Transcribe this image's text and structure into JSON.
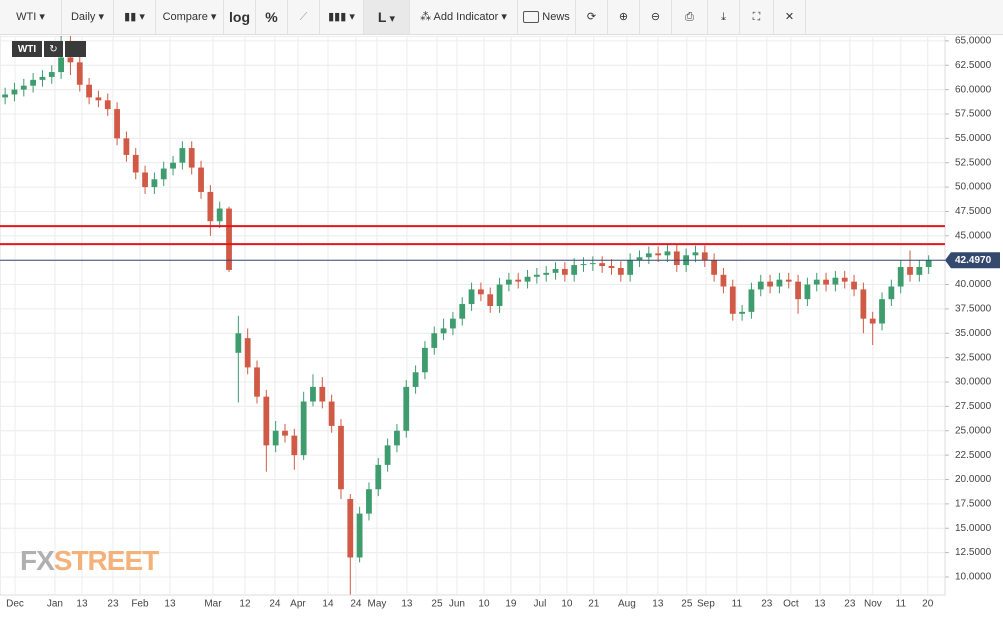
{
  "toolbar": {
    "symbol": "WTI",
    "interval": "Daily",
    "compare": "Compare",
    "log": "log",
    "percent": "%",
    "chart_style": "L",
    "indicator": "Add Indicator",
    "news": "News"
  },
  "watermark": [
    "FX",
    "STREET"
  ],
  "chart_data": {
    "type": "candlestick",
    "up_color": "#3e9c6e",
    "down_color": "#d05a45",
    "grid": true,
    "open": [
      59.2,
      59.5,
      60.0,
      60.4,
      61.0,
      61.3,
      61.8,
      63.3,
      62.8,
      60.5,
      59.2,
      58.9,
      58.0,
      55.0,
      53.3,
      51.5,
      50.0,
      50.8,
      51.9,
      52.5,
      54.0,
      52.0,
      49.5,
      46.5,
      47.8,
      33.0,
      34.5,
      31.5,
      28.5,
      23.5,
      25.0,
      24.5,
      22.5,
      28.0,
      29.5,
      28.0,
      25.5,
      18.0,
      12.0,
      16.5,
      19.0,
      21.5,
      23.5,
      25.0,
      29.5,
      31.0,
      33.5,
      35.0,
      35.5,
      36.5,
      38.0,
      39.5,
      39.0,
      37.8,
      40.0,
      40.5,
      40.3,
      40.8,
      41.0,
      41.2,
      41.6,
      41.0,
      42.0,
      42.1,
      42.2,
      41.9,
      41.7,
      41.0,
      42.5,
      42.8,
      43.2,
      43.0,
      43.4,
      42.0,
      43.0,
      43.3,
      42.5,
      41.0,
      39.8,
      37.0,
      37.2,
      39.5,
      40.3,
      39.8,
      40.5,
      40.3,
      38.5,
      40.0,
      40.5,
      40.0,
      40.7,
      40.3,
      39.5,
      36.5,
      36.0,
      38.5,
      39.8,
      41.8,
      41.0,
      41.8
    ],
    "high": [
      60.2,
      60.7,
      61.1,
      61.7,
      62.0,
      62.5,
      65.6,
      65.5,
      63.5,
      61.2,
      59.9,
      59.6,
      58.7,
      55.7,
      54.0,
      52.2,
      51.5,
      52.6,
      53.2,
      54.7,
      54.7,
      52.7,
      50.2,
      48.5,
      48.0,
      36.8,
      35.5,
      32.2,
      29.2,
      26.0,
      25.7,
      25.2,
      29.0,
      30.8,
      30.5,
      28.7,
      26.2,
      18.5,
      17.2,
      19.7,
      22.2,
      24.2,
      25.7,
      30.2,
      31.7,
      34.2,
      35.7,
      36.5,
      37.2,
      38.7,
      40.2,
      40.2,
      39.7,
      40.7,
      41.2,
      41.2,
      41.5,
      41.7,
      41.9,
      42.3,
      42.3,
      42.7,
      42.8,
      42.9,
      42.9,
      42.6,
      42.4,
      43.2,
      43.5,
      43.9,
      43.9,
      44.1,
      44.1,
      43.7,
      44.0,
      44.0,
      43.2,
      41.7,
      40.5,
      37.9,
      40.2,
      41.0,
      41.0,
      41.2,
      41.2,
      41.0,
      40.7,
      41.2,
      41.2,
      41.4,
      41.4,
      41.0,
      40.2,
      37.2,
      39.2,
      40.5,
      42.5,
      43.5,
      42.5,
      43.0
    ],
    "low": [
      58.5,
      58.8,
      59.3,
      59.7,
      60.3,
      60.6,
      61.1,
      61.5,
      59.8,
      58.5,
      58.2,
      57.3,
      54.3,
      52.6,
      50.8,
      49.3,
      49.3,
      50.1,
      51.2,
      51.8,
      51.3,
      48.8,
      45.0,
      45.8,
      41.3,
      27.9,
      30.8,
      27.8,
      20.8,
      22.8,
      23.8,
      21.0,
      22.0,
      27.5,
      27.3,
      24.8,
      18.0,
      8.2,
      11.5,
      15.8,
      18.3,
      20.8,
      22.8,
      24.3,
      28.8,
      30.3,
      32.8,
      34.3,
      34.8,
      35.8,
      37.3,
      38.3,
      37.1,
      37.1,
      39.3,
      39.6,
      39.6,
      40.1,
      40.3,
      40.5,
      40.3,
      40.3,
      41.3,
      41.4,
      41.2,
      41.0,
      40.3,
      40.3,
      41.8,
      42.1,
      42.3,
      42.3,
      41.3,
      41.3,
      42.3,
      41.8,
      40.3,
      39.1,
      36.3,
      36.3,
      36.5,
      38.8,
      39.1,
      39.1,
      39.6,
      37.0,
      37.8,
      39.3,
      39.3,
      39.3,
      39.6,
      38.8,
      35.0,
      33.8,
      35.3,
      37.8,
      39.1,
      40.3,
      40.3,
      41.1
    ],
    "close": [
      59.5,
      60.0,
      60.4,
      61.0,
      61.3,
      61.8,
      63.3,
      62.8,
      60.5,
      59.2,
      58.9,
      58.0,
      55.0,
      53.3,
      51.5,
      50.0,
      50.8,
      51.9,
      52.5,
      54.0,
      52.0,
      49.5,
      46.5,
      47.8,
      41.5,
      35.0,
      31.5,
      28.5,
      23.5,
      25.0,
      24.5,
      22.5,
      28.0,
      29.5,
      28.0,
      25.5,
      19.0,
      12.0,
      16.5,
      19.0,
      21.5,
      23.5,
      25.0,
      29.5,
      31.0,
      33.5,
      35.0,
      35.5,
      36.5,
      38.0,
      39.5,
      39.0,
      37.8,
      40.0,
      40.5,
      40.3,
      40.8,
      41.0,
      41.2,
      41.6,
      41.0,
      42.0,
      42.1,
      42.2,
      41.9,
      41.7,
      41.0,
      42.5,
      42.8,
      43.2,
      43.0,
      43.4,
      42.0,
      43.0,
      43.3,
      42.5,
      41.0,
      39.8,
      37.0,
      37.2,
      39.5,
      40.3,
      39.8,
      40.5,
      40.3,
      38.5,
      40.0,
      40.5,
      40.0,
      40.7,
      40.3,
      39.5,
      36.5,
      36.0,
      38.5,
      39.8,
      41.8,
      41.0,
      41.8,
      42.5
    ],
    "levels": [
      46.0,
      44.15
    ],
    "level_color": "#e8141b",
    "last_price": {
      "value": 42.497,
      "label": "42.4970"
    },
    "last_color": "#34496e",
    "xlim": [
      -0.55,
      100.75
    ],
    "xticks": [
      {
        "value": 1.06,
        "label": "Dec"
      },
      {
        "value": 5.34,
        "label": "Jan"
      },
      {
        "value": 8.24,
        "label": "13"
      },
      {
        "value": 11.56,
        "label": "23"
      },
      {
        "value": 14.45,
        "label": "Feb"
      },
      {
        "value": 17.67,
        "label": "13"
      },
      {
        "value": 22.28,
        "label": "Mar"
      },
      {
        "value": 25.71,
        "label": "12"
      },
      {
        "value": 28.92,
        "label": "24"
      },
      {
        "value": 31.39,
        "label": "Apr"
      },
      {
        "value": 34.61,
        "label": "14"
      },
      {
        "value": 37.6,
        "label": "24"
      },
      {
        "value": 39.86,
        "label": "May"
      },
      {
        "value": 43.07,
        "label": "13"
      },
      {
        "value": 46.29,
        "label": "25"
      },
      {
        "value": 48.43,
        "label": "Jun"
      },
      {
        "value": 51.33,
        "label": "10"
      },
      {
        "value": 54.22,
        "label": "19"
      },
      {
        "value": 57.33,
        "label": "Jul"
      },
      {
        "value": 60.22,
        "label": "10"
      },
      {
        "value": 63.1,
        "label": "21"
      },
      {
        "value": 66.65,
        "label": "Aug"
      },
      {
        "value": 69.97,
        "label": "13"
      },
      {
        "value": 73.08,
        "label": "25"
      },
      {
        "value": 75.12,
        "label": "Sep"
      },
      {
        "value": 78.44,
        "label": "11"
      },
      {
        "value": 81.65,
        "label": "23"
      },
      {
        "value": 84.23,
        "label": "Oct"
      },
      {
        "value": 87.34,
        "label": "13"
      },
      {
        "value": 90.55,
        "label": "23"
      },
      {
        "value": 93.02,
        "label": "Nov"
      },
      {
        "value": 96.02,
        "label": "11"
      },
      {
        "value": 98.9,
        "label": "20"
      }
    ],
    "ylim": [
      8.15,
      65.5
    ],
    "yticks": [
      {
        "value": 10,
        "label": "10.0000"
      },
      {
        "value": 12.5,
        "label": "12.5000"
      },
      {
        "value": 15,
        "label": "15.0000"
      },
      {
        "value": 17.5,
        "label": "17.5000"
      },
      {
        "value": 20,
        "label": "20.0000"
      },
      {
        "value": 22.5,
        "label": "22.5000"
      },
      {
        "value": 25,
        "label": "25.0000"
      },
      {
        "value": 27.5,
        "label": "27.5000"
      },
      {
        "value": 30,
        "label": "30.0000"
      },
      {
        "value": 32.5,
        "label": "32.5000"
      },
      {
        "value": 35,
        "label": "35.0000"
      },
      {
        "value": 37.5,
        "label": "37.5000"
      },
      {
        "value": 40,
        "label": "40.0000"
      },
      {
        "value": 42.5,
        "label": "42.5000"
      },
      {
        "value": 45,
        "label": "45.0000"
      },
      {
        "value": 47.5,
        "label": "47.5000"
      },
      {
        "value": 50,
        "label": "50.0000"
      },
      {
        "value": 52.5,
        "label": "52.5000"
      },
      {
        "value": 55,
        "label": "55.0000"
      },
      {
        "value": 57.5,
        "label": "57.5000"
      },
      {
        "value": 60,
        "label": "60.0000"
      },
      {
        "value": 62.5,
        "label": "62.5000"
      },
      {
        "value": 65,
        "label": "65.0000"
      }
    ]
  }
}
